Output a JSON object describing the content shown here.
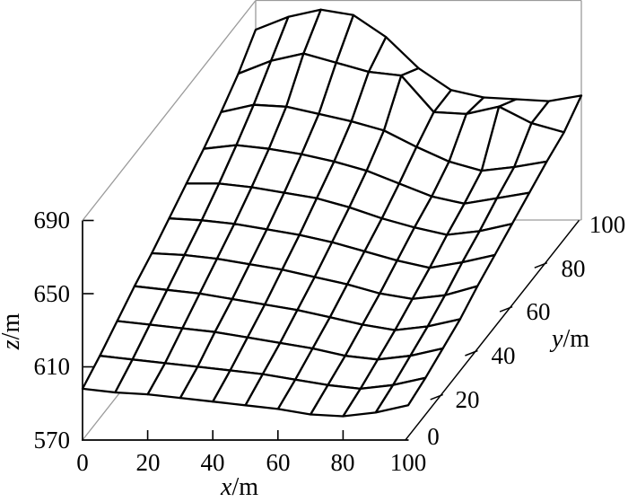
{
  "figure": {
    "background": "#ffffff",
    "mesh_color": "#000000",
    "axis_color": "#000000",
    "box_color": "#9b9b9b"
  },
  "axes": {
    "x": {
      "var": "x",
      "unit": "/m"
    },
    "y": {
      "var": "y",
      "unit": "/m"
    },
    "z": {
      "var": "z",
      "unit": "/m"
    }
  },
  "chart_data": {
    "type": "surface-wireframe",
    "title": "",
    "xlabel": "x/m",
    "ylabel": "y/m",
    "zlabel": "z/m",
    "grid": false,
    "legend": "none",
    "xlim": [
      0,
      100
    ],
    "ylim": [
      0,
      100
    ],
    "zlim": [
      570,
      690
    ],
    "x_ticks": [
      "0",
      "20",
      "40",
      "60",
      "80",
      "100"
    ],
    "y_ticks": [
      "0",
      "20",
      "40",
      "60",
      "80",
      "100"
    ],
    "z_ticks": [
      "570",
      "610",
      "650",
      "690"
    ],
    "x": [
      0,
      10,
      20,
      30,
      40,
      50,
      60,
      70,
      80,
      90,
      100
    ],
    "y": [
      0,
      10,
      20,
      30,
      40,
      50,
      60,
      70,
      80,
      90,
      100
    ],
    "z_rows_y0_to_y100": [
      [
        598,
        596,
        595,
        593,
        591,
        589,
        587,
        584,
        583,
        585,
        589
      ],
      [
        604,
        602,
        600,
        598,
        596,
        594,
        591,
        588,
        586,
        588,
        592
      ],
      [
        611,
        609,
        607,
        605,
        602,
        599,
        596,
        592,
        590,
        592,
        596
      ],
      [
        618,
        616,
        614,
        611,
        608,
        605,
        601,
        597,
        594,
        596,
        600
      ],
      [
        624,
        623,
        621,
        618,
        615,
        611,
        607,
        602,
        599,
        601,
        606
      ],
      [
        631,
        630,
        628,
        625,
        622,
        618,
        613,
        608,
        604,
        607,
        611
      ],
      [
        638,
        638,
        636,
        633,
        630,
        625,
        619,
        614,
        610,
        612,
        616
      ],
      [
        645,
        647,
        645,
        642,
        638,
        633,
        626,
        619,
        615,
        618,
        621
      ],
      [
        653,
        657,
        656,
        652,
        648,
        643,
        634,
        626,
        621,
        623,
        626
      ],
      [
        662,
        669,
        673,
        668,
        663,
        661,
        641,
        640,
        644,
        635,
        630
      ],
      [
        674,
        681,
        685,
        682,
        670,
        653,
        641,
        637,
        636,
        635,
        638
      ]
    ]
  }
}
